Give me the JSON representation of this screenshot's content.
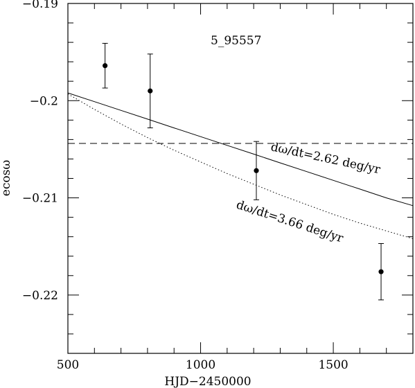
{
  "chart_data": {
    "type": "scatter",
    "title": "",
    "annotation": "5_95557",
    "xlabel": "HJD−2450000",
    "ylabel": "ecosω",
    "xlim": [
      500,
      1800
    ],
    "ylim": [
      -0.226,
      -0.19
    ],
    "x_ticks": [
      500,
      1000,
      1500
    ],
    "x_tick_labels": [
      "500",
      "1000",
      "1500"
    ],
    "y_ticks": [
      -0.19,
      -0.2,
      -0.21,
      -0.22
    ],
    "y_tick_labels": [
      "−0.19",
      "−0.2",
      "−0.21",
      "−0.22"
    ],
    "grid": false,
    "points": [
      {
        "x": 640,
        "y": -0.1964,
        "err": 0.0023
      },
      {
        "x": 810,
        "y": -0.199,
        "err": 0.0038
      },
      {
        "x": 1210,
        "y": -0.2072,
        "err": 0.003
      },
      {
        "x": 1680,
        "y": -0.2176,
        "err": 0.0029
      }
    ],
    "reference_line": {
      "style": "dashed",
      "y": -0.2044
    },
    "curves": [
      {
        "style": "solid",
        "label": "dω/dt=2.62 deg/yr",
        "x": [
          500,
          600,
          700,
          800,
          900,
          1000,
          1100,
          1200,
          1300,
          1400,
          1500,
          1600,
          1700,
          1800
        ],
        "y": [
          -0.1992,
          -0.2001,
          -0.201,
          -0.2019,
          -0.2028,
          -0.2037,
          -0.2046,
          -0.2055,
          -0.2064,
          -0.2073,
          -0.2082,
          -0.2091,
          -0.21,
          -0.2108
        ]
      },
      {
        "style": "dotted",
        "label": "dω/dt=3.66 deg/yr",
        "x": [
          500,
          600,
          700,
          800,
          900,
          1000,
          1100,
          1200,
          1300,
          1400,
          1500,
          1600,
          1700,
          1800
        ],
        "y": [
          -0.1993,
          -0.2009,
          -0.2024,
          -0.2038,
          -0.2051,
          -0.2063,
          -0.2075,
          -0.2086,
          -0.2097,
          -0.2107,
          -0.2117,
          -0.2126,
          -0.2134,
          -0.2142
        ]
      }
    ]
  }
}
